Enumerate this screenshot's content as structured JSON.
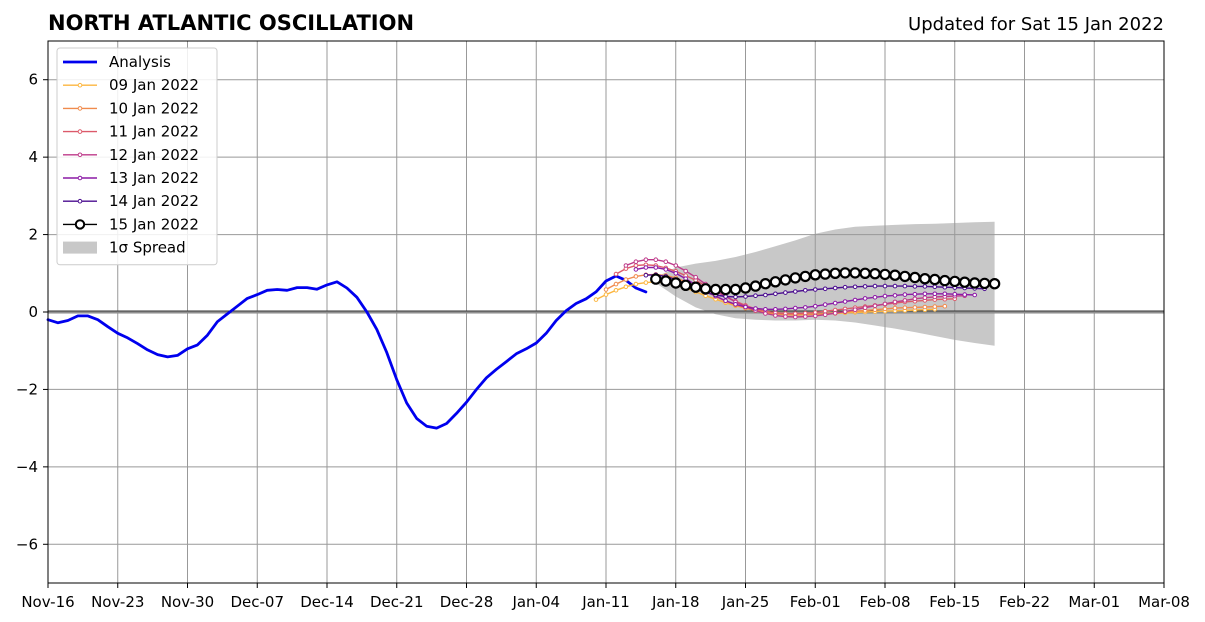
{
  "chart_data": {
    "type": "line",
    "title": "NORTH ATLANTIC OSCILLATION",
    "subtitle": "Updated for Sat 15 Jan 2022",
    "xlabel": "",
    "ylabel": "",
    "x_axis": {
      "start": "2021-11-16",
      "end": "2022-03-08",
      "tick_labels": [
        "Nov-16",
        "Nov-23",
        "Nov-30",
        "Dec-07",
        "Dec-14",
        "Dec-21",
        "Dec-28",
        "Jan-04",
        "Jan-11",
        "Jan-18",
        "Jan-25",
        "Feb-01",
        "Feb-08",
        "Feb-15",
        "Feb-22",
        "Mar-01",
        "Mar-08"
      ]
    },
    "ylim": [
      -7,
      7
    ],
    "y_ticks": [
      -6,
      -4,
      -2,
      0,
      2,
      4,
      6
    ],
    "y_tick_labels": [
      "−6",
      "−4",
      "−2",
      "0",
      "2",
      "4",
      "6"
    ],
    "grid": true,
    "zero_line": true,
    "legend_position": "top-left",
    "legend": [
      {
        "label": "Analysis",
        "color": "#0000ee",
        "style": "line"
      },
      {
        "label": "09 Jan 2022",
        "color": "#fcb63f",
        "style": "line-dot"
      },
      {
        "label": "10 Jan 2022",
        "color": "#f08b4d",
        "style": "line-dot"
      },
      {
        "label": "11 Jan 2022",
        "color": "#dc5a6a",
        "style": "line-dot"
      },
      {
        "label": "12 Jan 2022",
        "color": "#be3a8a",
        "style": "line-dot"
      },
      {
        "label": "13 Jan 2022",
        "color": "#8c1aa6",
        "style": "line-dot"
      },
      {
        "label": "14 Jan 2022",
        "color": "#4a0c8f",
        "style": "line-dot"
      },
      {
        "label": "15 Jan 2022",
        "color": "#000000",
        "style": "line-circle"
      },
      {
        "label": "1σ Spread",
        "color": "#c8c8c8",
        "style": "patch"
      }
    ],
    "series": [
      {
        "name": "Analysis",
        "color": "#0000ee",
        "x": [
          "2021-11-16",
          "2021-11-17",
          "2021-11-18",
          "2021-11-19",
          "2021-11-20",
          "2021-11-21",
          "2021-11-22",
          "2021-11-23",
          "2021-11-24",
          "2021-11-25",
          "2021-11-26",
          "2021-11-27",
          "2021-11-28",
          "2021-11-29",
          "2021-11-30",
          "2021-12-01",
          "2021-12-02",
          "2021-12-03",
          "2021-12-04",
          "2021-12-05",
          "2021-12-06",
          "2021-12-07",
          "2021-12-08",
          "2021-12-09",
          "2021-12-10",
          "2021-12-11",
          "2021-12-12",
          "2021-12-13",
          "2021-12-14",
          "2021-12-15",
          "2021-12-16",
          "2021-12-17",
          "2021-12-18",
          "2021-12-19",
          "2021-12-20",
          "2021-12-21",
          "2021-12-22",
          "2021-12-23",
          "2021-12-24",
          "2021-12-25",
          "2021-12-26",
          "2021-12-27",
          "2021-12-28",
          "2021-12-29",
          "2021-12-30",
          "2021-12-31",
          "2022-01-01",
          "2022-01-02",
          "2022-01-03",
          "2022-01-04",
          "2022-01-05",
          "2022-01-06",
          "2022-01-07",
          "2022-01-08",
          "2022-01-09",
          "2022-01-10",
          "2022-01-11",
          "2022-01-12",
          "2022-01-13",
          "2022-01-14",
          "2022-01-15"
        ],
        "y": [
          -0.2,
          -0.28,
          -0.22,
          -0.1,
          -0.1,
          -0.2,
          -0.38,
          -0.55,
          -0.67,
          -0.82,
          -0.98,
          -1.1,
          -1.16,
          -1.12,
          -0.95,
          -0.85,
          -0.6,
          -0.25,
          -0.05,
          0.15,
          0.35,
          0.45,
          0.56,
          0.58,
          0.56,
          0.63,
          0.63,
          0.59,
          0.7,
          0.78,
          0.62,
          0.38,
          0.0,
          -0.45,
          -1.05,
          -1.75,
          -2.35,
          -2.75,
          -2.95,
          -3.0,
          -2.88,
          -2.62,
          -2.33,
          -2.0,
          -1.7,
          -1.48,
          -1.28,
          -1.08,
          -0.95,
          -0.8,
          -0.55,
          -0.22,
          0.03,
          0.22,
          0.34,
          0.52,
          0.8,
          0.93,
          0.82,
          0.62,
          0.52
        ]
      },
      {
        "name": "09 Jan 2022",
        "color": "#fcb63f",
        "x": [
          "2022-01-10",
          "2022-01-11",
          "2022-01-12",
          "2022-01-13",
          "2022-01-14",
          "2022-01-15",
          "2022-01-16",
          "2022-01-17",
          "2022-01-18",
          "2022-01-19",
          "2022-01-20",
          "2022-01-21",
          "2022-01-22",
          "2022-01-23",
          "2022-01-24",
          "2022-01-25",
          "2022-01-26",
          "2022-01-27",
          "2022-01-28",
          "2022-01-29",
          "2022-01-30",
          "2022-01-31",
          "2022-02-01",
          "2022-02-02",
          "2022-02-03",
          "2022-02-04",
          "2022-02-05",
          "2022-02-06",
          "2022-02-07",
          "2022-02-08",
          "2022-02-09",
          "2022-02-10",
          "2022-02-11",
          "2022-02-12",
          "2022-02-13"
        ],
        "y": [
          0.32,
          0.45,
          0.56,
          0.65,
          0.72,
          0.76,
          0.78,
          0.75,
          0.7,
          0.62,
          0.52,
          0.42,
          0.33,
          0.24,
          0.16,
          0.1,
          0.05,
          0.01,
          -0.02,
          -0.04,
          -0.05,
          -0.06,
          -0.06,
          -0.05,
          -0.04,
          -0.02,
          -0.01,
          0.0,
          0.01,
          0.02,
          0.03,
          0.04,
          0.05,
          0.06,
          0.07
        ]
      },
      {
        "name": "10 Jan 2022",
        "color": "#f08b4d",
        "x": [
          "2022-01-11",
          "2022-01-12",
          "2022-01-13",
          "2022-01-14",
          "2022-01-15",
          "2022-01-16",
          "2022-01-17",
          "2022-01-18",
          "2022-01-19",
          "2022-01-20",
          "2022-01-21",
          "2022-01-22",
          "2022-01-23",
          "2022-01-24",
          "2022-01-25",
          "2022-01-26",
          "2022-01-27",
          "2022-01-28",
          "2022-01-29",
          "2022-01-30",
          "2022-01-31",
          "2022-02-01",
          "2022-02-02",
          "2022-02-03",
          "2022-02-04",
          "2022-02-05",
          "2022-02-06",
          "2022-02-07",
          "2022-02-08",
          "2022-02-09",
          "2022-02-10",
          "2022-02-11",
          "2022-02-12",
          "2022-02-13",
          "2022-02-14"
        ],
        "y": [
          0.58,
          0.72,
          0.84,
          0.92,
          0.96,
          0.97,
          0.94,
          0.88,
          0.78,
          0.66,
          0.53,
          0.4,
          0.28,
          0.18,
          0.1,
          0.03,
          -0.02,
          -0.05,
          -0.07,
          -0.08,
          -0.07,
          -0.06,
          -0.04,
          -0.02,
          0.0,
          0.02,
          0.04,
          0.06,
          0.08,
          0.1,
          0.11,
          0.12,
          0.13,
          0.14,
          0.15
        ]
      },
      {
        "name": "11 Jan 2022",
        "color": "#dc5a6a",
        "x": [
          "2022-01-12",
          "2022-01-13",
          "2022-01-14",
          "2022-01-15",
          "2022-01-16",
          "2022-01-17",
          "2022-01-18",
          "2022-01-19",
          "2022-01-20",
          "2022-01-21",
          "2022-01-22",
          "2022-01-23",
          "2022-01-24",
          "2022-01-25",
          "2022-01-26",
          "2022-01-27",
          "2022-01-28",
          "2022-01-29",
          "2022-01-30",
          "2022-01-31",
          "2022-02-01",
          "2022-02-02",
          "2022-02-03",
          "2022-02-04",
          "2022-02-05",
          "2022-02-06",
          "2022-02-07",
          "2022-02-08",
          "2022-02-09",
          "2022-02-10",
          "2022-02-11",
          "2022-02-12",
          "2022-02-13",
          "2022-02-14",
          "2022-02-15"
        ],
        "y": [
          0.98,
          1.12,
          1.2,
          1.22,
          1.2,
          1.14,
          1.05,
          0.94,
          0.82,
          0.68,
          0.54,
          0.4,
          0.28,
          0.17,
          0.08,
          0.02,
          -0.02,
          -0.04,
          -0.04,
          -0.03,
          -0.01,
          0.02,
          0.05,
          0.08,
          0.11,
          0.14,
          0.17,
          0.2,
          0.23,
          0.26,
          0.28,
          0.3,
          0.32,
          0.33,
          0.34
        ]
      },
      {
        "name": "12 Jan 2022",
        "color": "#be3a8a",
        "x": [
          "2022-01-13",
          "2022-01-14",
          "2022-01-15",
          "2022-01-16",
          "2022-01-17",
          "2022-01-18",
          "2022-01-19",
          "2022-01-20",
          "2022-01-21",
          "2022-01-22",
          "2022-01-23",
          "2022-01-24",
          "2022-01-25",
          "2022-01-26",
          "2022-01-27",
          "2022-01-28",
          "2022-01-29",
          "2022-01-30",
          "2022-01-31",
          "2022-02-01",
          "2022-02-02",
          "2022-02-03",
          "2022-02-04",
          "2022-02-05",
          "2022-02-06",
          "2022-02-07",
          "2022-02-08",
          "2022-02-09",
          "2022-02-10",
          "2022-02-11",
          "2022-02-12",
          "2022-02-13",
          "2022-02-14",
          "2022-02-15",
          "2022-02-16"
        ],
        "y": [
          1.2,
          1.3,
          1.35,
          1.35,
          1.3,
          1.2,
          1.06,
          0.9,
          0.72,
          0.55,
          0.4,
          0.26,
          0.14,
          0.04,
          -0.04,
          -0.09,
          -0.12,
          -0.13,
          -0.12,
          -0.1,
          -0.07,
          -0.03,
          0.01,
          0.06,
          0.11,
          0.16,
          0.21,
          0.26,
          0.3,
          0.34,
          0.37,
          0.39,
          0.4,
          0.41,
          0.42
        ]
      },
      {
        "name": "13 Jan 2022",
        "color": "#8c1aa6",
        "x": [
          "2022-01-14",
          "2022-01-15",
          "2022-01-16",
          "2022-01-17",
          "2022-01-18",
          "2022-01-19",
          "2022-01-20",
          "2022-01-21",
          "2022-01-22",
          "2022-01-23",
          "2022-01-24",
          "2022-01-25",
          "2022-01-26",
          "2022-01-27",
          "2022-01-28",
          "2022-01-29",
          "2022-01-30",
          "2022-01-31",
          "2022-02-01",
          "2022-02-02",
          "2022-02-03",
          "2022-02-04",
          "2022-02-05",
          "2022-02-06",
          "2022-02-07",
          "2022-02-08",
          "2022-02-09",
          "2022-02-10",
          "2022-02-11",
          "2022-02-12",
          "2022-02-13",
          "2022-02-14",
          "2022-02-15",
          "2022-02-16",
          "2022-02-17"
        ],
        "y": [
          1.1,
          1.15,
          1.15,
          1.1,
          1.0,
          0.86,
          0.7,
          0.55,
          0.41,
          0.29,
          0.2,
          0.13,
          0.09,
          0.07,
          0.07,
          0.08,
          0.1,
          0.12,
          0.15,
          0.19,
          0.23,
          0.27,
          0.31,
          0.35,
          0.38,
          0.41,
          0.43,
          0.45,
          0.46,
          0.47,
          0.47,
          0.47,
          0.46,
          0.45,
          0.44
        ]
      },
      {
        "name": "14 Jan 2022",
        "color": "#4a0c8f",
        "x": [
          "2022-01-15",
          "2022-01-16",
          "2022-01-17",
          "2022-01-18",
          "2022-01-19",
          "2022-01-20",
          "2022-01-21",
          "2022-01-22",
          "2022-01-23",
          "2022-01-24",
          "2022-01-25",
          "2022-01-26",
          "2022-01-27",
          "2022-01-28",
          "2022-01-29",
          "2022-01-30",
          "2022-01-31",
          "2022-02-01",
          "2022-02-02",
          "2022-02-03",
          "2022-02-04",
          "2022-02-05",
          "2022-02-06",
          "2022-02-07",
          "2022-02-08",
          "2022-02-09",
          "2022-02-10",
          "2022-02-11",
          "2022-02-12",
          "2022-02-13",
          "2022-02-14",
          "2022-02-15",
          "2022-02-16",
          "2022-02-17",
          "2022-02-18"
        ],
        "y": [
          0.95,
          0.96,
          0.92,
          0.84,
          0.72,
          0.6,
          0.5,
          0.44,
          0.4,
          0.39,
          0.4,
          0.42,
          0.44,
          0.47,
          0.5,
          0.53,
          0.56,
          0.58,
          0.6,
          0.62,
          0.64,
          0.65,
          0.66,
          0.67,
          0.67,
          0.67,
          0.67,
          0.66,
          0.66,
          0.65,
          0.64,
          0.63,
          0.62,
          0.61,
          0.6
        ]
      },
      {
        "name": "15 Jan 2022",
        "color": "#000000",
        "x": [
          "2022-01-16",
          "2022-01-17",
          "2022-01-18",
          "2022-01-19",
          "2022-01-20",
          "2022-01-21",
          "2022-01-22",
          "2022-01-23",
          "2022-01-24",
          "2022-01-25",
          "2022-01-26",
          "2022-01-27",
          "2022-01-28",
          "2022-01-29",
          "2022-01-30",
          "2022-01-31",
          "2022-02-01",
          "2022-02-02",
          "2022-02-03",
          "2022-02-04",
          "2022-02-05",
          "2022-02-06",
          "2022-02-07",
          "2022-02-08",
          "2022-02-09",
          "2022-02-10",
          "2022-02-11",
          "2022-02-12",
          "2022-02-13",
          "2022-02-14",
          "2022-02-15",
          "2022-02-16",
          "2022-02-17",
          "2022-02-18",
          "2022-02-19"
        ],
        "y": [
          0.85,
          0.8,
          0.75,
          0.69,
          0.64,
          0.6,
          0.58,
          0.58,
          0.58,
          0.62,
          0.67,
          0.73,
          0.78,
          0.83,
          0.88,
          0.92,
          0.96,
          0.98,
          1.0,
          1.01,
          1.01,
          1.0,
          0.99,
          0.97,
          0.95,
          0.92,
          0.89,
          0.86,
          0.84,
          0.81,
          0.79,
          0.77,
          0.75,
          0.74,
          0.73
        ]
      }
    ],
    "spread": {
      "name": "1σ Spread",
      "color": "#c8c8c8",
      "x": [
        "2022-01-16",
        "2022-01-18",
        "2022-01-20",
        "2022-01-22",
        "2022-01-24",
        "2022-01-26",
        "2022-01-28",
        "2022-01-30",
        "2022-02-01",
        "2022-02-03",
        "2022-02-05",
        "2022-02-07",
        "2022-02-09",
        "2022-02-11",
        "2022-02-13",
        "2022-02-15",
        "2022-02-17",
        "2022-02-19"
      ],
      "upper": [
        0.9,
        1.15,
        1.25,
        1.32,
        1.42,
        1.55,
        1.7,
        1.85,
        2.02,
        2.13,
        2.2,
        2.23,
        2.25,
        2.27,
        2.28,
        2.3,
        2.32,
        2.33
      ],
      "lower": [
        0.75,
        0.4,
        0.12,
        -0.06,
        -0.16,
        -0.2,
        -0.22,
        -0.22,
        -0.2,
        -0.22,
        -0.27,
        -0.35,
        -0.43,
        -0.52,
        -0.62,
        -0.72,
        -0.8,
        -0.87
      ]
    }
  }
}
